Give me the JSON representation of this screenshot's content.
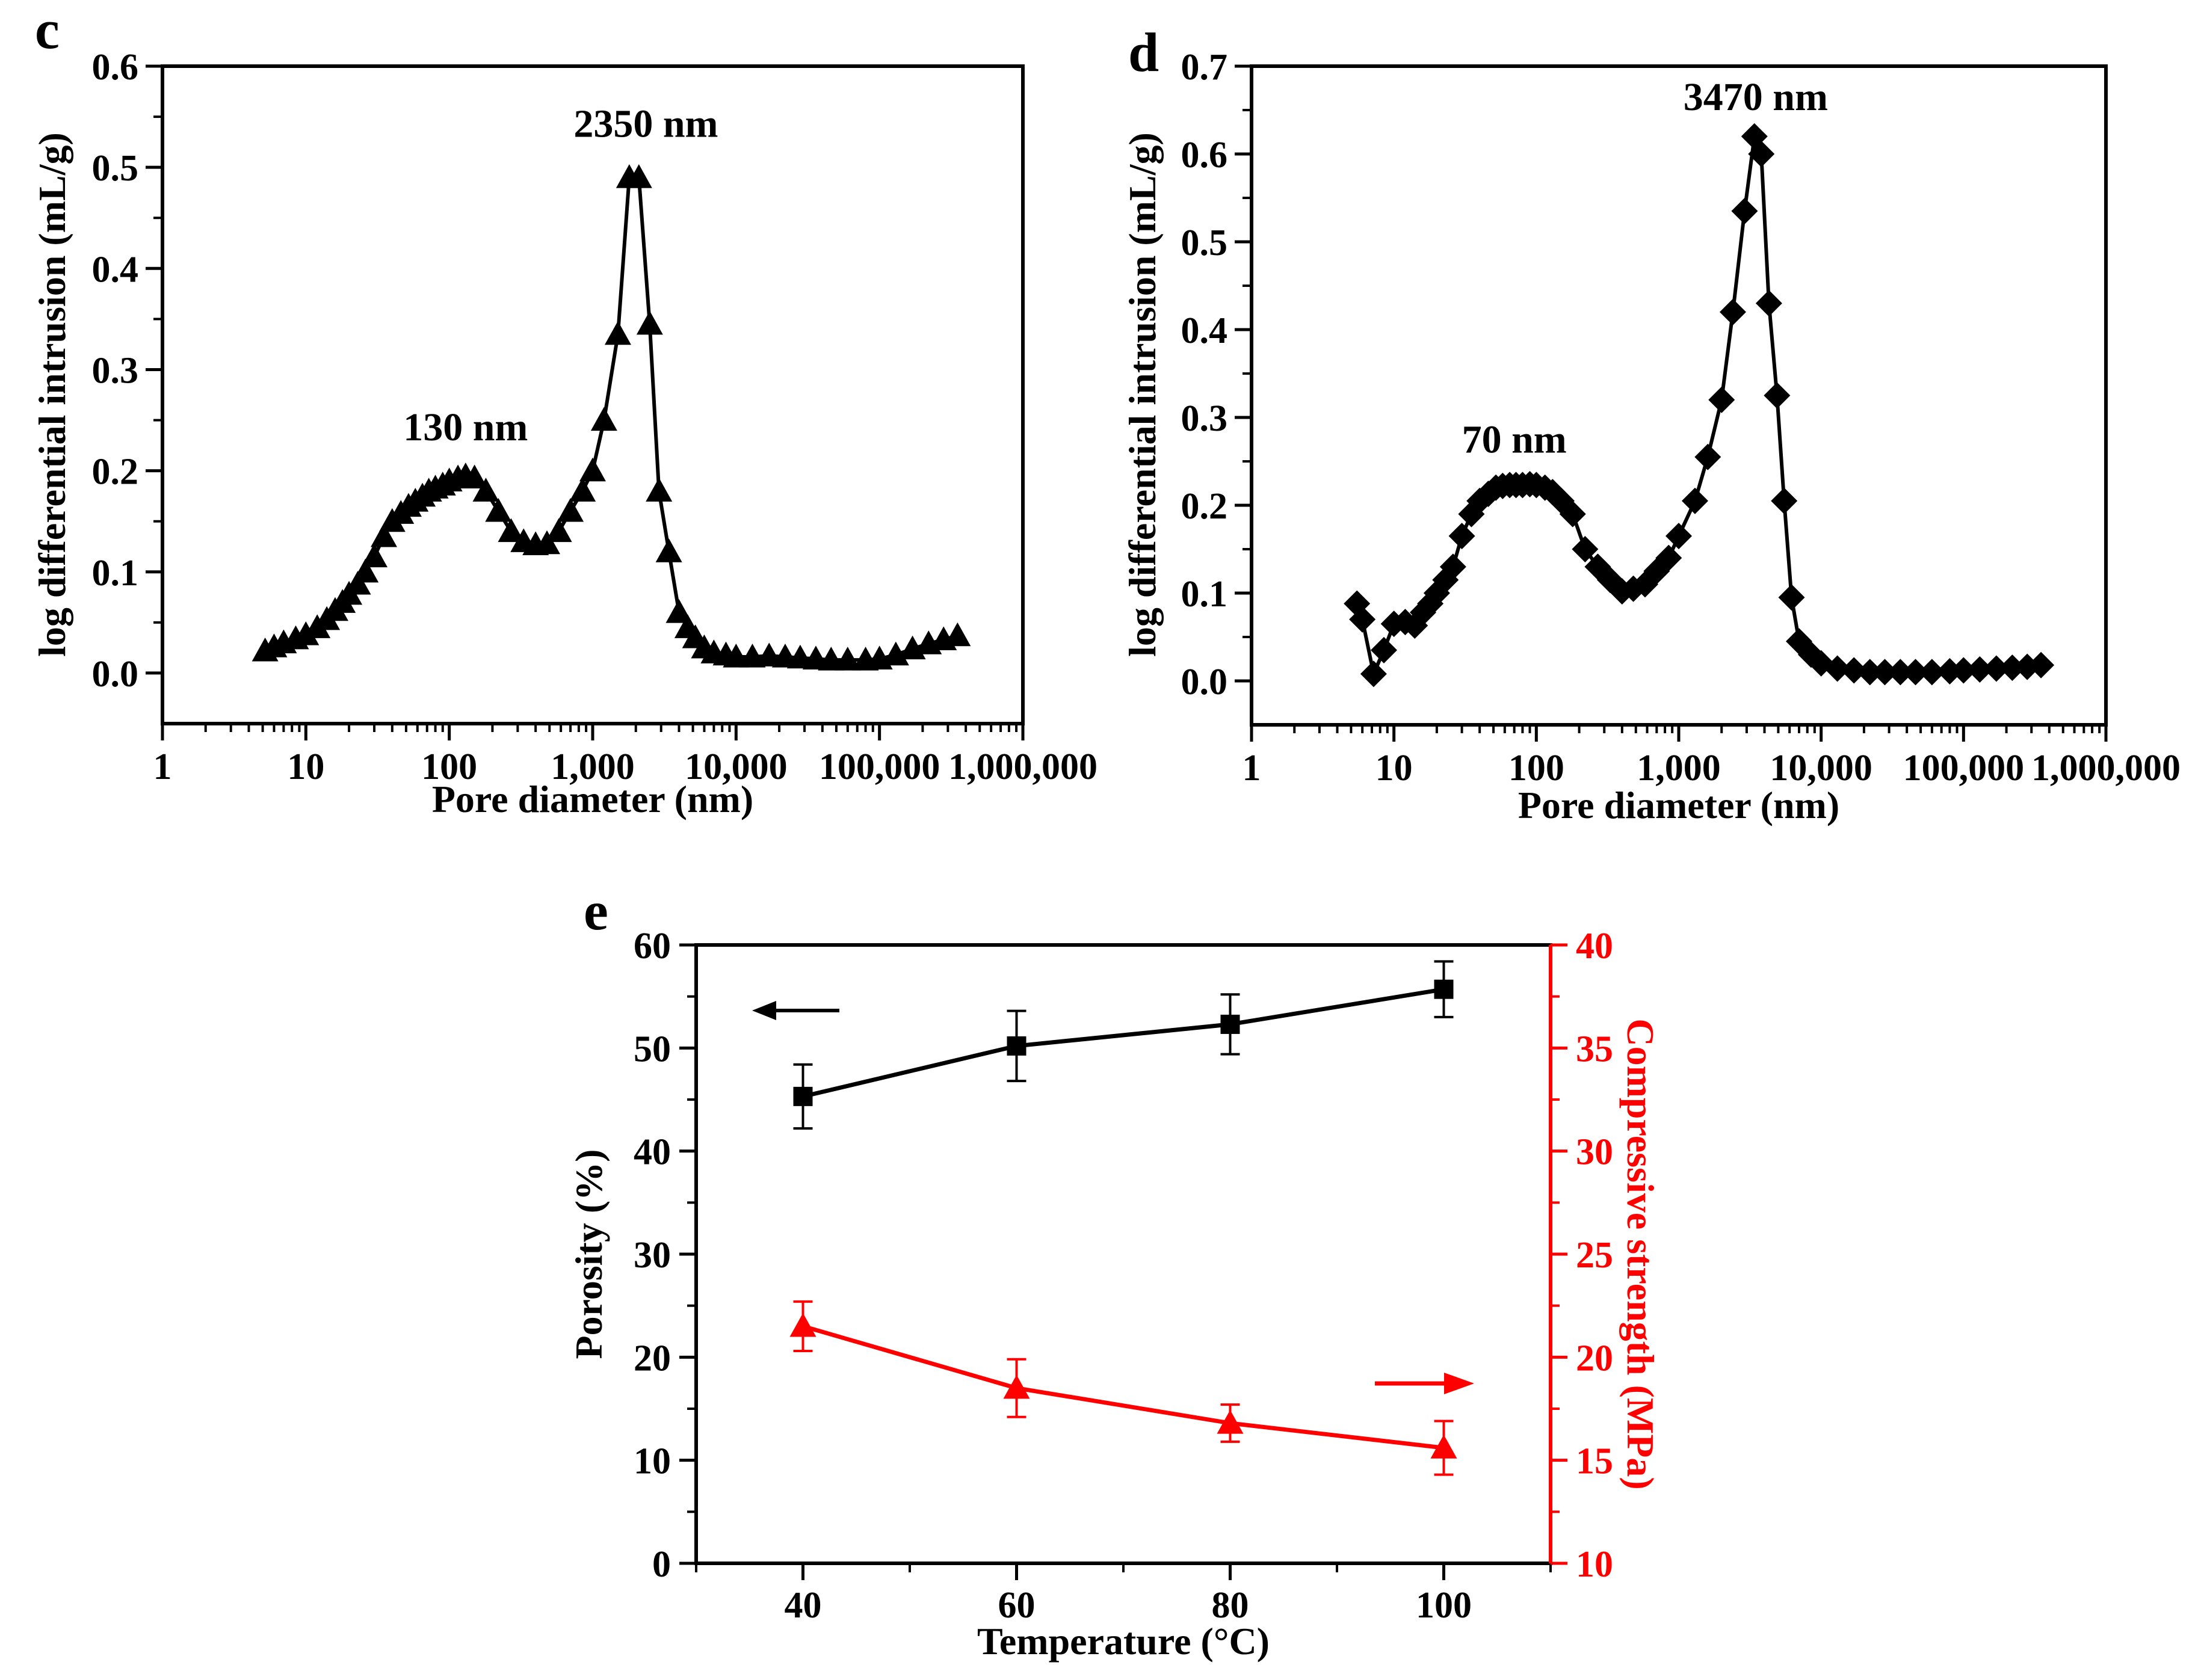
{
  "colors": {
    "black": "#000000",
    "red": "#ff0000"
  },
  "chart_data": [
    {
      "panel": "c",
      "type": "scatter",
      "marker": "triangle",
      "xscale": "log",
      "xlim": [
        1,
        1000000
      ],
      "ylim": [
        -0.05,
        0.6
      ],
      "xlabel": "Pore diameter (nm)",
      "ylabel": "log differential intrusion (mL/g)",
      "xticks": [
        {
          "v": 1,
          "label": "1"
        },
        {
          "v": 10,
          "label": "10"
        },
        {
          "v": 100,
          "label": "100"
        },
        {
          "v": 1000,
          "label": "1,000"
        },
        {
          "v": 10000,
          "label": "10,000"
        },
        {
          "v": 100000,
          "label": "100,000"
        },
        {
          "v": 1000000,
          "label": "1,000,000"
        }
      ],
      "yticks": [
        {
          "v": 0,
          "label": "0.0"
        },
        {
          "v": 0.1,
          "label": "0.1"
        },
        {
          "v": 0.2,
          "label": "0.2"
        },
        {
          "v": 0.3,
          "label": "0.3"
        },
        {
          "v": 0.4,
          "label": "0.4"
        },
        {
          "v": 0.5,
          "label": "0.5"
        },
        {
          "v": 0.6,
          "label": "0.6"
        }
      ],
      "annotations": [
        {
          "text": "130 nm",
          "x": 130,
          "y": 0.23
        },
        {
          "text": "2350 nm",
          "x": 2350,
          "y": 0.53
        }
      ],
      "x": [
        5.2,
        6,
        7,
        8.5,
        10,
        12,
        14,
        16,
        18,
        20,
        23,
        26,
        30,
        35,
        40,
        46,
        52,
        58,
        65,
        72,
        80,
        90,
        100,
        115,
        130,
        150,
        180,
        220,
        270,
        330,
        400,
        480,
        580,
        700,
        850,
        1000,
        1200,
        1500,
        1800,
        2100,
        2500,
        2900,
        3400,
        4000,
        4600,
        5200,
        6000,
        7000,
        8500,
        10000,
        13000,
        17000,
        22000,
        28000,
        36000,
        46000,
        60000,
        80000,
        100000,
        130000,
        170000,
        220000,
        280000,
        350000
      ],
      "y": [
        0.022,
        0.026,
        0.03,
        0.034,
        0.038,
        0.045,
        0.053,
        0.062,
        0.07,
        0.078,
        0.088,
        0.1,
        0.115,
        0.135,
        0.15,
        0.158,
        0.165,
        0.17,
        0.175,
        0.18,
        0.183,
        0.186,
        0.19,
        0.193,
        0.195,
        0.193,
        0.18,
        0.16,
        0.14,
        0.13,
        0.127,
        0.128,
        0.14,
        0.16,
        0.18,
        0.2,
        0.25,
        0.335,
        0.49,
        0.49,
        0.345,
        0.18,
        0.12,
        0.06,
        0.045,
        0.035,
        0.025,
        0.02,
        0.018,
        0.016,
        0.016,
        0.017,
        0.016,
        0.015,
        0.014,
        0.013,
        0.013,
        0.013,
        0.014,
        0.018,
        0.024,
        0.029,
        0.033,
        0.037
      ]
    },
    {
      "panel": "d",
      "type": "scatter",
      "marker": "diamond",
      "xscale": "log",
      "xlim": [
        1,
        1000000
      ],
      "ylim": [
        -0.05,
        0.7
      ],
      "xlabel": "Pore diameter (nm)",
      "ylabel": "log differential intrusion (mL/g)",
      "xticks": [
        {
          "v": 1,
          "label": "1"
        },
        {
          "v": 10,
          "label": "10"
        },
        {
          "v": 100,
          "label": "100"
        },
        {
          "v": 1000,
          "label": "1,000"
        },
        {
          "v": 10000,
          "label": "10,000"
        },
        {
          "v": 100000,
          "label": "100,000"
        },
        {
          "v": 1000000,
          "label": "1,000,000"
        }
      ],
      "yticks": [
        {
          "v": 0,
          "label": "0.0"
        },
        {
          "v": 0.1,
          "label": "0.1"
        },
        {
          "v": 0.2,
          "label": "0.2"
        },
        {
          "v": 0.3,
          "label": "0.3"
        },
        {
          "v": 0.4,
          "label": "0.4"
        },
        {
          "v": 0.5,
          "label": "0.5"
        },
        {
          "v": 0.6,
          "label": "0.6"
        },
        {
          "v": 0.7,
          "label": "0.7"
        }
      ],
      "annotations": [
        {
          "text": "70 nm",
          "x": 70,
          "y": 0.26
        },
        {
          "text": "3470 nm",
          "x": 3470,
          "y": 0.65
        }
      ],
      "x": [
        5.5,
        6,
        7.2,
        8.5,
        10,
        12,
        14,
        16,
        18,
        20,
        23,
        26,
        30,
        35,
        40,
        46,
        52,
        58,
        65,
        72,
        80,
        90,
        100,
        115,
        130,
        150,
        180,
        220,
        270,
        330,
        400,
        480,
        580,
        700,
        850,
        1000,
        1300,
        1600,
        2000,
        2400,
        2900,
        3400,
        3800,
        4300,
        4900,
        5500,
        6200,
        7000,
        8500,
        10000,
        13000,
        17000,
        22000,
        28000,
        36000,
        46000,
        60000,
        80000,
        100000,
        130000,
        170000,
        220000,
        280000,
        350000
      ],
      "y": [
        0.088,
        0.07,
        0.008,
        0.035,
        0.065,
        0.067,
        0.063,
        0.078,
        0.088,
        0.1,
        0.115,
        0.13,
        0.165,
        0.19,
        0.205,
        0.213,
        0.22,
        0.222,
        0.223,
        0.223,
        0.223,
        0.224,
        0.223,
        0.22,
        0.215,
        0.205,
        0.19,
        0.15,
        0.13,
        0.115,
        0.102,
        0.105,
        0.11,
        0.125,
        0.14,
        0.165,
        0.205,
        0.255,
        0.32,
        0.42,
        0.535,
        0.62,
        0.6,
        0.43,
        0.325,
        0.205,
        0.095,
        0.045,
        0.03,
        0.02,
        0.014,
        0.012,
        0.01,
        0.01,
        0.01,
        0.01,
        0.01,
        0.011,
        0.012,
        0.013,
        0.014,
        0.015,
        0.016,
        0.018
      ]
    },
    {
      "panel": "e",
      "type": "line",
      "xlabel": "Temperature (°C)",
      "xlim": [
        30,
        110
      ],
      "ylim_left": [
        0,
        60
      ],
      "ylim_right": [
        10,
        40
      ],
      "xticks": [
        {
          "v": 40,
          "label": "40"
        },
        {
          "v": 60,
          "label": "60"
        },
        {
          "v": 80,
          "label": "80"
        },
        {
          "v": 100,
          "label": "100"
        }
      ],
      "yticks_left": [
        {
          "v": 0,
          "label": "0"
        },
        {
          "v": 10,
          "label": "10"
        },
        {
          "v": 20,
          "label": "20"
        },
        {
          "v": 30,
          "label": "30"
        },
        {
          "v": 40,
          "label": "40"
        },
        {
          "v": 50,
          "label": "50"
        },
        {
          "v": 60,
          "label": "60"
        }
      ],
      "yticks_right": [
        {
          "v": 10,
          "label": "10"
        },
        {
          "v": 15,
          "label": "15"
        },
        {
          "v": 20,
          "label": "20"
        },
        {
          "v": 25,
          "label": "25"
        },
        {
          "v": 30,
          "label": "30"
        },
        {
          "v": 35,
          "label": "35"
        },
        {
          "v": 40,
          "label": "40"
        }
      ],
      "ylabel_left": "Porosity (%)",
      "ylabel_right": "Compressive strength (MPa)",
      "series": [
        {
          "name": "Porosity",
          "axis": "left",
          "marker": "square",
          "x": [
            40,
            60,
            80,
            100
          ],
          "values": [
            45.3,
            50.2,
            52.3,
            55.7
          ],
          "errors": [
            3.1,
            3.4,
            2.9,
            2.7
          ]
        },
        {
          "name": "Compressive strength",
          "axis": "right",
          "marker": "triangle",
          "x": [
            40,
            60,
            80,
            100
          ],
          "values": [
            21.5,
            18.5,
            16.8,
            15.6
          ],
          "errors": [
            1.2,
            1.4,
            0.9,
            1.3
          ]
        }
      ]
    }
  ]
}
